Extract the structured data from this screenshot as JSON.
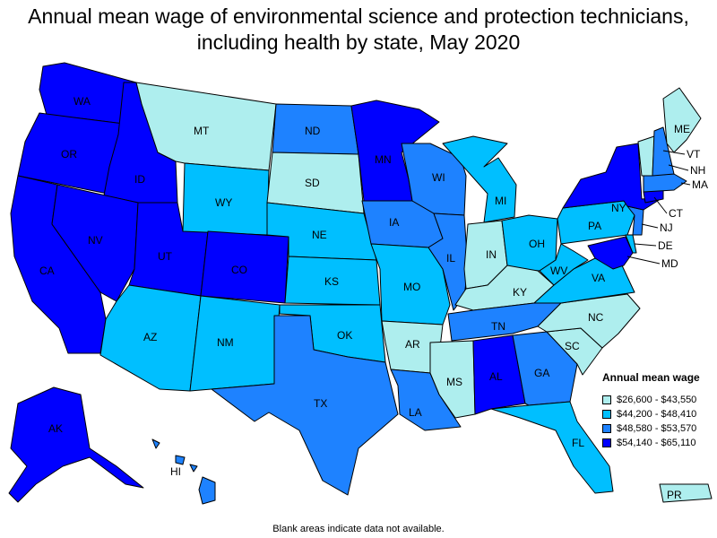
{
  "title": "Annual mean wage of environmental science and protection technicians, including health by state, May 2020",
  "footnote": "Blank areas indicate data not available.",
  "legend": {
    "title": "Annual mean wage",
    "bins": [
      {
        "label": "$26,600 - $43,550",
        "color": "#aeeeee"
      },
      {
        "label": "$44,200 - $48,410",
        "color": "#00bfff"
      },
      {
        "label": "$48,580 - $53,570",
        "color": "#1e82ff"
      },
      {
        "label": "$54,140 - $65,110",
        "color": "#0000ff"
      }
    ]
  },
  "states": [
    {
      "abbr": "WA",
      "bin": 3
    },
    {
      "abbr": "OR",
      "bin": 3
    },
    {
      "abbr": "CA",
      "bin": 3
    },
    {
      "abbr": "ID",
      "bin": 3
    },
    {
      "abbr": "NV",
      "bin": 3
    },
    {
      "abbr": "UT",
      "bin": 3
    },
    {
      "abbr": "CO",
      "bin": 3
    },
    {
      "abbr": "MN",
      "bin": 3
    },
    {
      "abbr": "AL",
      "bin": 3
    },
    {
      "abbr": "NY",
      "bin": 3
    },
    {
      "abbr": "AK",
      "bin": 3
    },
    {
      "abbr": "MD",
      "bin": 3
    },
    {
      "abbr": "CT",
      "bin": 3
    },
    {
      "abbr": "ND",
      "bin": 2
    },
    {
      "abbr": "IA",
      "bin": 2
    },
    {
      "abbr": "WI",
      "bin": 2
    },
    {
      "abbr": "IL",
      "bin": 2
    },
    {
      "abbr": "TX",
      "bin": 2
    },
    {
      "abbr": "LA",
      "bin": 2
    },
    {
      "abbr": "TN",
      "bin": 2
    },
    {
      "abbr": "GA",
      "bin": 2
    },
    {
      "abbr": "HI",
      "bin": 2
    },
    {
      "abbr": "NH",
      "bin": 2
    },
    {
      "abbr": "MA",
      "bin": 2
    },
    {
      "abbr": "NJ",
      "bin": 2
    },
    {
      "abbr": "WY",
      "bin": 1
    },
    {
      "abbr": "NE",
      "bin": 1
    },
    {
      "abbr": "KS",
      "bin": 1
    },
    {
      "abbr": "AZ",
      "bin": 1
    },
    {
      "abbr": "NM",
      "bin": 1
    },
    {
      "abbr": "OK",
      "bin": 1
    },
    {
      "abbr": "MO",
      "bin": 1
    },
    {
      "abbr": "MI",
      "bin": 1
    },
    {
      "abbr": "OH",
      "bin": 1
    },
    {
      "abbr": "PA",
      "bin": 1
    },
    {
      "abbr": "WV",
      "bin": 1
    },
    {
      "abbr": "VA",
      "bin": 1
    },
    {
      "abbr": "FL",
      "bin": 1
    },
    {
      "abbr": "DE",
      "bin": 1
    },
    {
      "abbr": "MT",
      "bin": 0
    },
    {
      "abbr": "SD",
      "bin": 0
    },
    {
      "abbr": "AR",
      "bin": 0
    },
    {
      "abbr": "MS",
      "bin": 0
    },
    {
      "abbr": "IN",
      "bin": 0
    },
    {
      "abbr": "KY",
      "bin": 0
    },
    {
      "abbr": "NC",
      "bin": 0
    },
    {
      "abbr": "SC",
      "bin": 0
    },
    {
      "abbr": "ME",
      "bin": 0
    },
    {
      "abbr": "VT",
      "bin": 0
    },
    {
      "abbr": "PR",
      "bin": 0
    }
  ]
}
